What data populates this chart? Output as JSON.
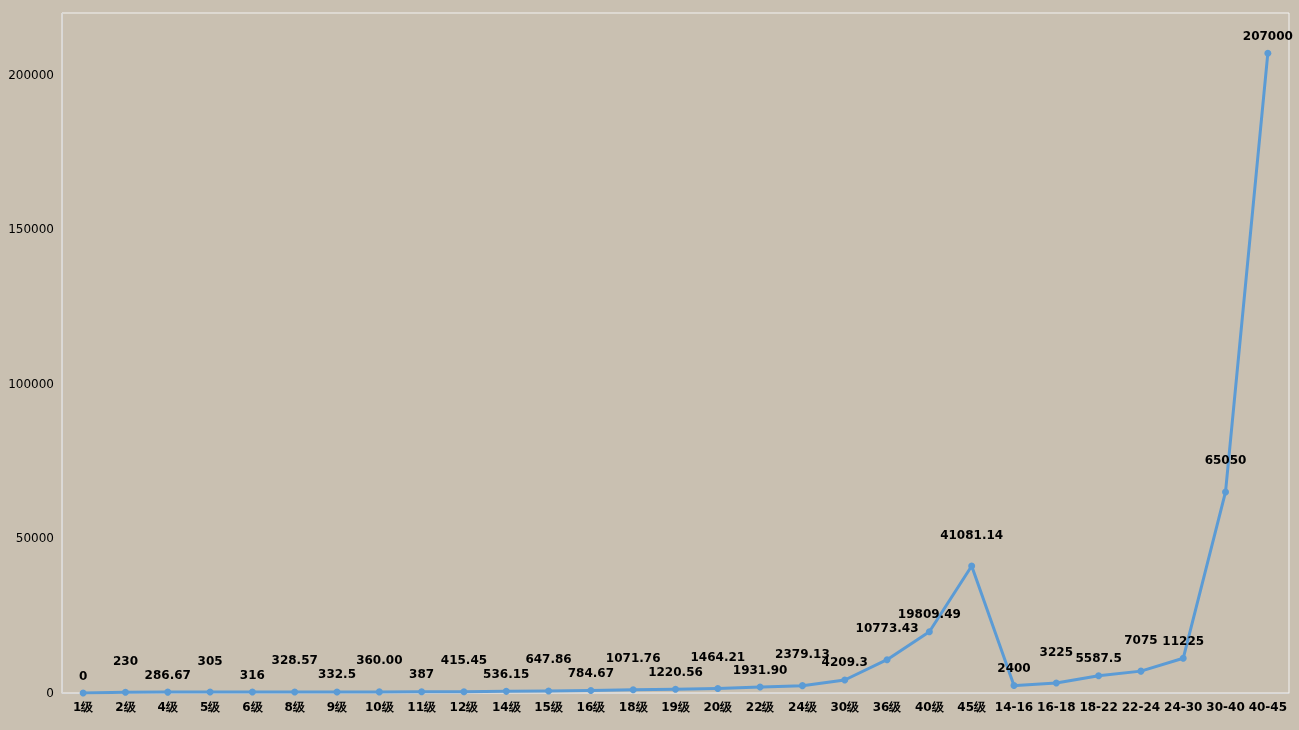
{
  "chart_data": {
    "type": "line",
    "categories": [
      "1级",
      "2级",
      "4级",
      "5级",
      "6级",
      "8级",
      "9级",
      "10级",
      "11级",
      "12级",
      "14级",
      "15级",
      "16级",
      "18级",
      "19级",
      "20级",
      "22级",
      "24级",
      "30级",
      "36级",
      "40级",
      "45级",
      "14-16",
      "16-18",
      "18-22",
      "22-24",
      "24-30",
      "30-40",
      "40-45"
    ],
    "series": [
      {
        "color": "#5b9bd5",
        "values": [
          0,
          230,
          286.67,
          305,
          316,
          328.57,
          332.5,
          360.0,
          387,
          415.45,
          536.15,
          647.86,
          784.67,
          1071.76,
          1220.56,
          1464.21,
          1931.9,
          2379.13,
          4209.3,
          10773.43,
          19809.49,
          41081.14,
          2400,
          3225,
          5587.5,
          7075,
          11225,
          65050,
          207000
        ],
        "value_labels": [
          "0",
          "230",
          "286.67",
          "305",
          "316",
          "328.57",
          "332.5",
          "360.00",
          "387",
          "415.45",
          "536.15",
          "647.86",
          "784.67",
          "1071.76",
          "1220.56",
          "1464.21",
          "1931.90",
          "2379.13",
          "4209.3",
          "10773.43",
          "19809.49",
          "41081.14",
          "2400",
          "3225",
          "5587.5",
          "7075",
          "11225",
          "65050",
          "207000"
        ]
      }
    ],
    "ylim": [
      0,
      220000
    ],
    "yticks": [
      0,
      50000,
      100000,
      150000,
      200000
    ],
    "grid": false,
    "marker": "circle",
    "line_style": "solid"
  }
}
